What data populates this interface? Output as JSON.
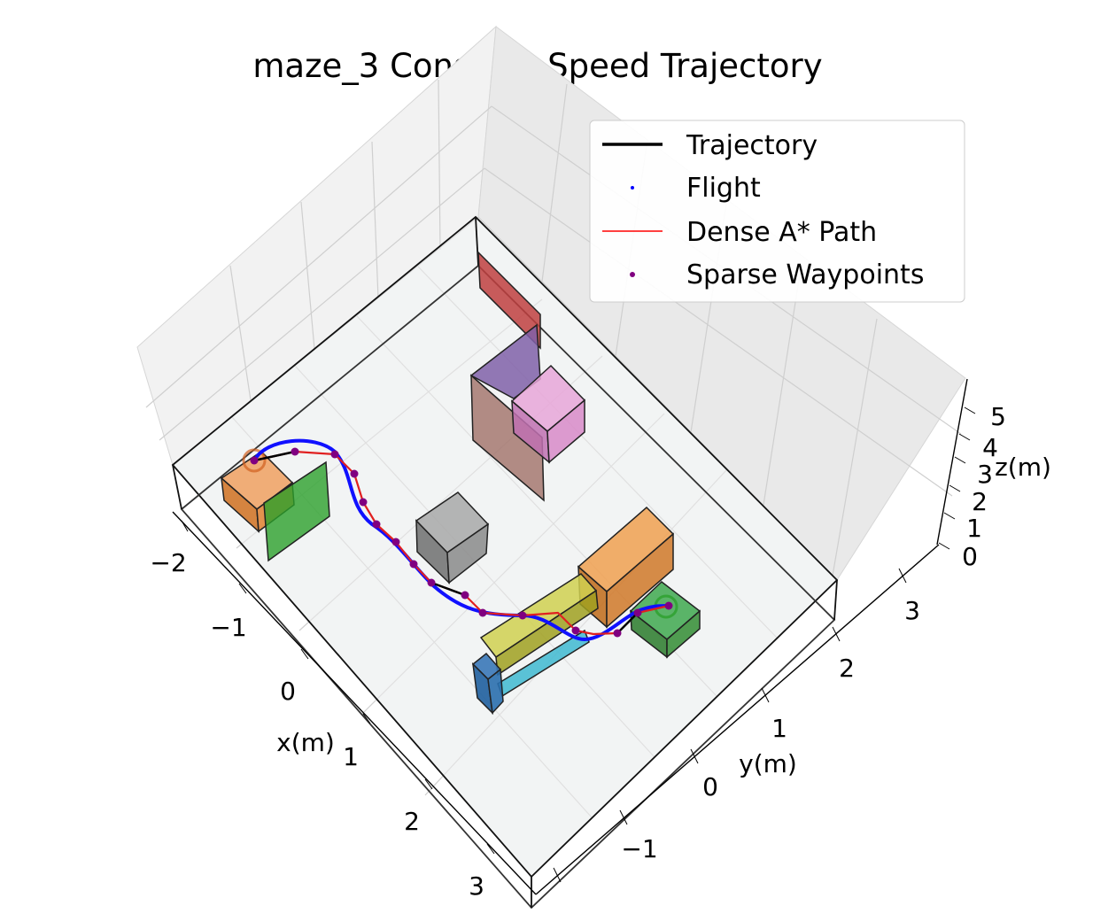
{
  "chart_data": {
    "type": "3d-line",
    "title": "maze_3 Constant Speed Trajectory",
    "xlabel": "x(m)",
    "ylabel": "y(m)",
    "zlabel": "z(m)",
    "xlim": [
      -2.5,
      3.5
    ],
    "ylim": [
      -2,
      4
    ],
    "zlim": [
      0,
      5
    ],
    "x_ticks": [
      "−2",
      "−1",
      "0",
      "1",
      "2",
      "3"
    ],
    "y_ticks": [
      "−1",
      "0",
      "1",
      "2",
      "3"
    ],
    "z_ticks": [
      "0",
      "1",
      "2",
      "3",
      "4",
      "5"
    ],
    "legend": {
      "position": "upper-right",
      "entries": [
        {
          "label": "Trajectory",
          "style": "line",
          "color": "#000000"
        },
        {
          "label": "Flight",
          "style": "dot",
          "color": "#0000ff"
        },
        {
          "label": "Dense A* Path",
          "style": "line",
          "color": "#ff0000"
        },
        {
          "label": "Sparse Waypoints",
          "style": "dot",
          "color": "#800080"
        }
      ]
    },
    "series": [
      {
        "name": "Flight",
        "color": "#0000ff",
        "points": [
          [
            -1.8,
            -0.6,
            0.4
          ],
          [
            -1.9,
            -0.3,
            0.6
          ],
          [
            -1.8,
            0.2,
            0.5
          ],
          [
            -1.2,
            0.5,
            0.5
          ],
          [
            -0.6,
            0.6,
            0.5
          ],
          [
            0.0,
            0.8,
            0.5
          ],
          [
            0.4,
            1.1,
            0.5
          ],
          [
            0.8,
            1.5,
            0.5
          ],
          [
            1.0,
            1.9,
            0.5
          ],
          [
            1.0,
            2.3,
            0.5
          ],
          [
            1.1,
            2.7,
            0.5
          ],
          [
            1.0,
            3.0,
            0.5
          ]
        ]
      },
      {
        "name": "Dense A* Path",
        "color": "#ff0000",
        "points": [
          [
            -1.8,
            -0.6,
            0.4
          ],
          [
            -1.8,
            0.1,
            0.5
          ],
          [
            -1.3,
            0.4,
            0.5
          ],
          [
            -0.6,
            0.6,
            0.5
          ],
          [
            0.0,
            0.8,
            0.5
          ],
          [
            0.5,
            1.2,
            0.5
          ],
          [
            0.8,
            1.6,
            0.5
          ],
          [
            1.0,
            2.1,
            0.5
          ],
          [
            1.0,
            2.6,
            0.5
          ],
          [
            1.0,
            3.0,
            0.5
          ]
        ]
      },
      {
        "name": "Sparse Waypoints",
        "color": "#800080",
        "points": [
          [
            -1.8,
            -0.6,
            0.4
          ],
          [
            -1.8,
            0.1,
            0.5
          ],
          [
            -1.3,
            0.4,
            0.5
          ],
          [
            -0.6,
            0.6,
            0.5
          ],
          [
            0.0,
            0.8,
            0.5
          ],
          [
            0.5,
            1.2,
            0.5
          ],
          [
            0.8,
            1.6,
            0.5
          ],
          [
            1.0,
            2.1,
            0.5
          ],
          [
            1.0,
            2.6,
            0.5
          ],
          [
            1.0,
            3.0,
            0.5
          ]
        ]
      },
      {
        "name": "Trajectory",
        "color": "#000000",
        "points": [
          [
            -1.8,
            -0.6,
            0.4
          ],
          [
            -1.8,
            0.1,
            0.5
          ],
          [
            0.5,
            1.2,
            0.5
          ],
          [
            1.0,
            3.0,
            0.5
          ]
        ]
      }
    ],
    "obstacles": [
      {
        "color": "#ff7f0e",
        "description": "orange box near start"
      },
      {
        "color": "#2ca02c",
        "description": "green wall near start"
      },
      {
        "color": "#7f7f7f",
        "description": "gray cube"
      },
      {
        "color": "#d62728",
        "description": "red wall"
      },
      {
        "color": "#9467bd",
        "description": "purple wall"
      },
      {
        "color": "#8c564b",
        "description": "brown wall"
      },
      {
        "color": "#e377c2",
        "description": "pink cube"
      },
      {
        "color": "#ff7f0e",
        "description": "orange large box"
      },
      {
        "color": "#bcbd22",
        "description": "olive beam"
      },
      {
        "color": "#17becf",
        "description": "cyan beam"
      },
      {
        "color": "#1f77b4",
        "description": "blue pillar"
      },
      {
        "color": "#2ca02c",
        "description": "green box at goal"
      }
    ]
  }
}
